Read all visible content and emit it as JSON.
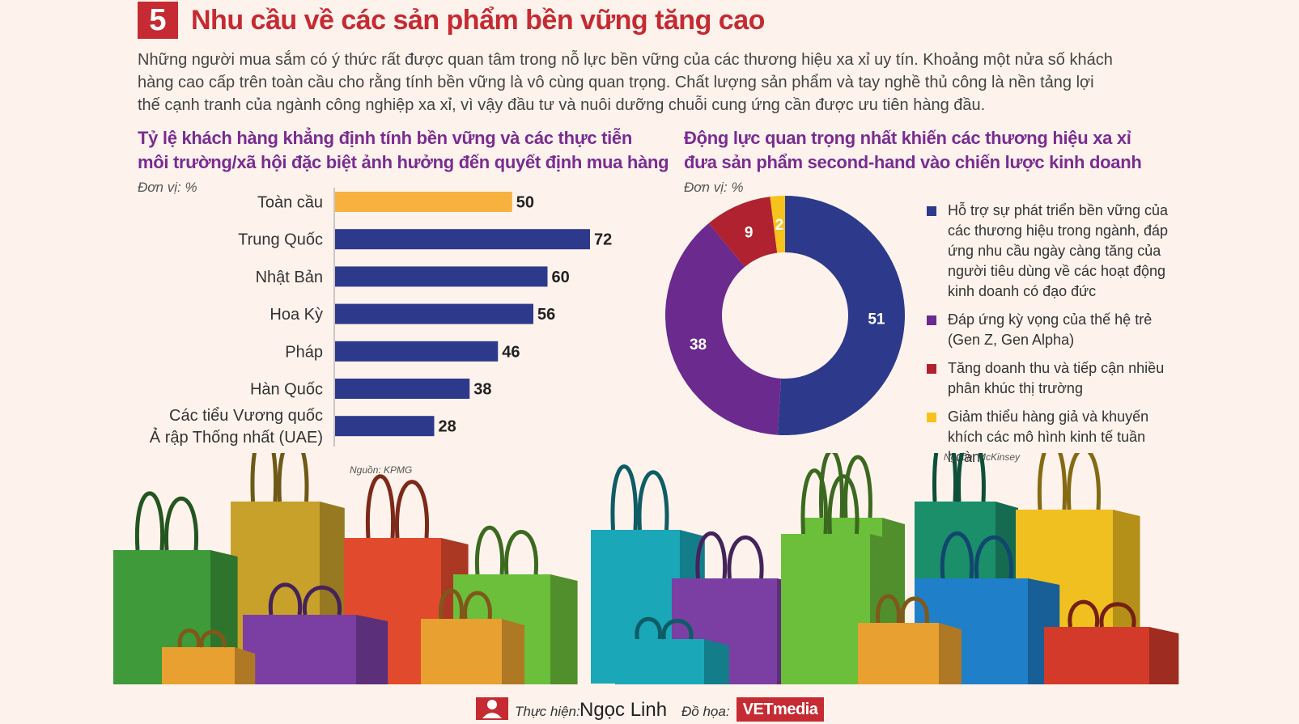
{
  "header": {
    "number": "5",
    "title": "Nhu cầu về các sản phẩm bền vững tăng cao"
  },
  "intro": {
    "line1": "Những người mua sắm có ý thức rất được quan tâm trong nỗ lực bền vững của các thương hiệu xa xỉ uy tín. Khoảng một nửa số khách",
    "line2": "hàng cao cấp trên toàn cầu cho rằng tính bền vững là vô cùng quan trọng. Chất lượng sản phẩm và tay nghề thủ công là nền tảng lợi",
    "line3": "thế cạnh tranh của ngành công nghiệp xa xỉ, vì vậy đầu tư và nuôi dưỡng chuỗi cung ứng cần được ưu tiên hàng đầu."
  },
  "chart_data": [
    {
      "type": "bar",
      "orientation": "horizontal",
      "title_line1": "Tỷ lệ khách hàng khẳng định tính bền vững và các thực tiễn",
      "title_line2": "môi trường/xã hội đặc biệt ảnh hưởng đến quyết định mua hàng",
      "unit": "Đơn vị: %",
      "categories": [
        "Toàn cầu",
        "Trung Quốc",
        "Nhật Bản",
        "Hoa Kỳ",
        "Pháp",
        "Hàn Quốc",
        "Các tiểu Vương quốc\nẢ rập Thống nhất (UAE)"
      ],
      "category_lines": [
        [
          "Toàn cầu"
        ],
        [
          "Trung Quốc"
        ],
        [
          "Nhật Bản"
        ],
        [
          "Hoa Kỳ"
        ],
        [
          "Pháp"
        ],
        [
          "Hàn Quốc"
        ],
        [
          "Các tiểu Vương quốc",
          "Ả rập Thống nhất (UAE)"
        ]
      ],
      "values": [
        50,
        72,
        60,
        56,
        46,
        38,
        28
      ],
      "colors": [
        "#f7b13f",
        "#2d3a8c",
        "#2d3a8c",
        "#2d3a8c",
        "#2d3a8c",
        "#2d3a8c",
        "#2d3a8c"
      ],
      "xlim": [
        0,
        72
      ],
      "source": "Nguồn: KPMG"
    },
    {
      "type": "pie",
      "donut": true,
      "title_line1": "Động lực quan trọng nhất khiến các thương hiệu xa xỉ",
      "title_line2": "đưa sản phẩm second-hand vào chiến lược kinh doanh",
      "unit": "Đơn vị: %",
      "values": [
        51,
        38,
        9,
        2
      ],
      "labels": [
        "51",
        "38",
        "9",
        "2"
      ],
      "colors": [
        "#2d3a8c",
        "#6a2a8e",
        "#b0222f",
        "#f7c21c"
      ],
      "legend": [
        "Hỗ trợ sự phát triển bền vững của các thương hiệu trong ngành, đáp ứng nhu cầu ngày càng tăng của người tiêu dùng về các hoạt động kinh doanh có đạo đức",
        "Đáp ứng kỳ vọng của thế hệ trẻ (Gen Z, Gen Alpha)",
        "Tăng doanh thu và tiếp cận nhiều phân khúc thị trường",
        "Giảm thiểu hàng giả và khuyến khích các mô hình kinh tế tuần hoàn"
      ],
      "source": "Nguồn: McKinsey"
    }
  ],
  "decor": {
    "bag_colors": [
      "#3f9b3a",
      "#c8a12a",
      "#e24a2e",
      "#1aa7b8",
      "#7b3fa3",
      "#6bbf3a",
      "#1a8f6a",
      "#f0c020",
      "#1f7fc8",
      "#d43a2a",
      "#e8a030"
    ]
  },
  "footer": {
    "made_by_label": "Thực hiện:",
    "made_by_name": "Ngọc Linh",
    "graphics_label": "Đồ họa:",
    "logo": "VETmedia"
  }
}
